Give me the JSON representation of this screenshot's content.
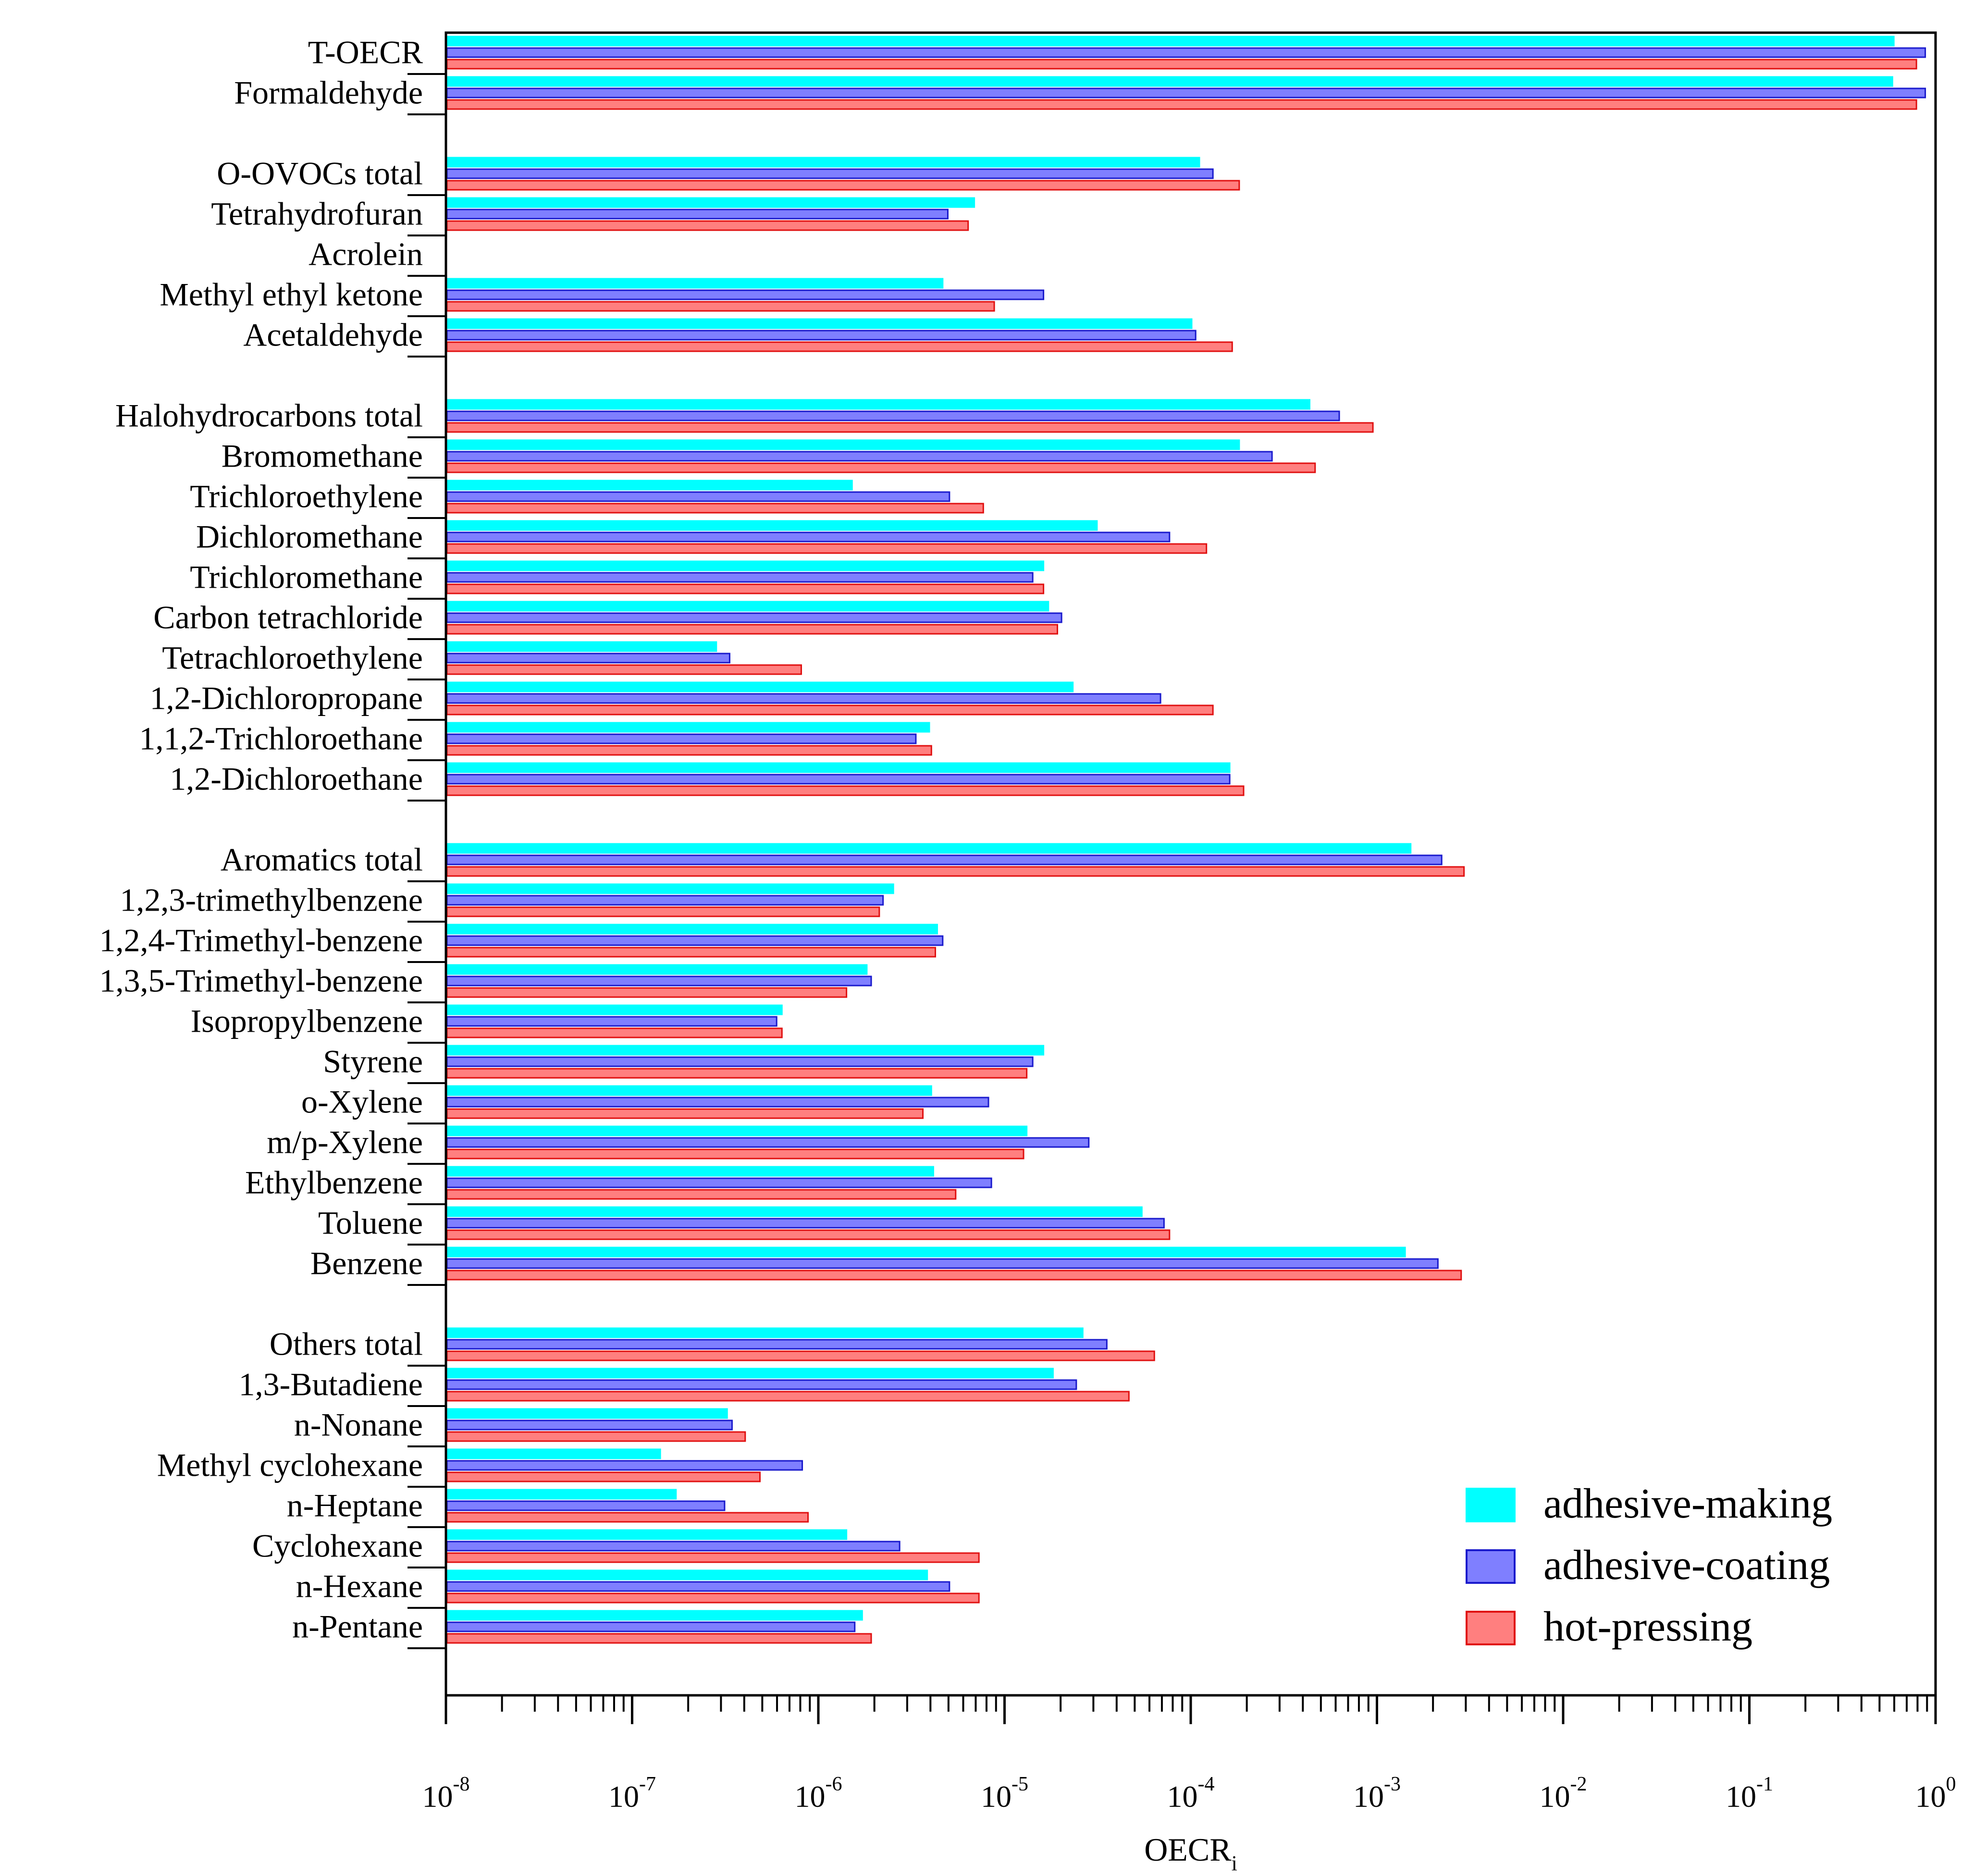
{
  "chart_data": {
    "type": "bar",
    "orientation": "horizontal",
    "xscale": "log",
    "xlim": [
      1e-08,
      1
    ],
    "xlabel": "OECR",
    "xlabel_subscript": "i",
    "tick_base": "10",
    "tick_exponents": [
      "-8",
      "-7",
      "-6",
      "-5",
      "-4",
      "-3",
      "-2",
      "-1",
      "0"
    ],
    "grid": false,
    "legend_position": "bottom-right",
    "categories": [
      "T-OECR",
      "Formaldehyde",
      "O-OVOCs total",
      "Tetrahydrofuran",
      "Acrolein",
      "Methyl ethyl ketone",
      "Acetaldehyde",
      "Halohydrocarbons total",
      "Bromomethane",
      "Trichloroethylene",
      "Dichloromethane",
      "Trichloromethane",
      "Carbon tetrachloride",
      "Tetrachloroethylene",
      "1,2-Dichloropropane",
      "1,1,2-Trichloroethane",
      "1,2-Dichloroethane",
      "Aromatics total",
      "1,2,3-trimethylbenzene",
      "1,2,4-Trimethyl-benzene",
      "1,3,5-Trimethyl-benzene",
      "Isopropylbenzene",
      "Styrene",
      "o-Xylene",
      "m/p-Xylene",
      "Ethylbenzene",
      "Toluene",
      "Benzene",
      "Others total",
      "1,3-Butadiene",
      "n-Nonane",
      "Methyl cyclohexane",
      "n-Heptane",
      "Cyclohexane",
      "n-Hexane",
      "n-Pentane"
    ],
    "group_ends_after": [
      "Formaldehyde",
      "Acetaldehyde",
      "1,2-Dichloroethane",
      "Benzene"
    ],
    "series": [
      {
        "name": "adhesive-making",
        "color": "#00ffff",
        "stroke": "#00ffff",
        "values": [
          0.59,
          0.58,
          0.00011,
          6.8e-06,
          null,
          4.6e-06,
          0.0001,
          0.00043,
          0.00018,
          1.5e-06,
          3.1e-05,
          1.6e-05,
          1.7e-05,
          2.8e-07,
          2.3e-05,
          3.9e-06,
          0.00016,
          0.0015,
          2.5e-06,
          4.3e-06,
          1.8e-06,
          6.3e-07,
          1.6e-05,
          4e-06,
          1.3e-05,
          4.1e-06,
          5.4e-05,
          0.0014,
          2.6e-05,
          1.8e-05,
          3.2e-07,
          1.4e-07,
          1.7e-07,
          1.4e-06,
          3.8e-06,
          1.7e-06
        ]
      },
      {
        "name": "adhesive-coating",
        "color": "#7f7fff",
        "stroke": "#1a1acc",
        "values": [
          0.87,
          0.87,
          0.00013,
          4.9e-06,
          null,
          1.6e-05,
          0.000105,
          0.00062,
          0.00027,
          5e-06,
          7.6e-05,
          1.4e-05,
          2e-05,
          3.3e-07,
          6.8e-05,
          3.3e-06,
          0.00016,
          0.0022,
          2.2e-06,
          4.6e-06,
          1.9e-06,
          5.9e-07,
          1.4e-05,
          8.1e-06,
          2.8e-05,
          8.4e-06,
          7.1e-05,
          0.0021,
          3.5e-05,
          2.4e-05,
          3.4e-07,
          8.1e-07,
          3.1e-07,
          2.7e-06,
          5e-06,
          1.55e-06
        ]
      },
      {
        "name": "hot-pressing",
        "color": "#ff7f7f",
        "stroke": "#e01010",
        "values": [
          0.78,
          0.78,
          0.00018,
          6.3e-06,
          null,
          8.7e-06,
          0.000165,
          0.00094,
          0.00046,
          7.6e-06,
          0.00012,
          1.6e-05,
          1.9e-05,
          8e-07,
          0.00013,
          4e-06,
          0.00019,
          0.0029,
          2.1e-06,
          4.2e-06,
          1.4e-06,
          6.3e-07,
          1.3e-05,
          3.6e-06,
          1.25e-05,
          5.4e-06,
          7.6e-05,
          0.0028,
          6.3e-05,
          4.6e-05,
          4e-07,
          4.8e-07,
          8.7e-07,
          7.2e-06,
          7.2e-06,
          1.9e-06
        ]
      }
    ]
  }
}
